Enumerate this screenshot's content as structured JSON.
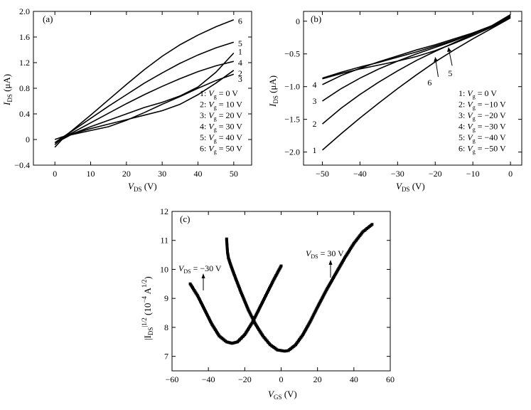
{
  "chart_data": [
    {
      "panel": "(a)",
      "type": "line",
      "xlabel_main": "V",
      "xlabel_sub": "DS",
      "xlabel_unit": " (V)",
      "ylabel_main": "I",
      "ylabel_sub": "DS",
      "ylabel_unit": " (μA)",
      "xlim": [
        -6,
        55
      ],
      "ylim": [
        -0.4,
        2.0
      ],
      "xticks": [
        0,
        10,
        20,
        30,
        40,
        50
      ],
      "yticks": [
        -0.4,
        0,
        0.4,
        0.8,
        1.2,
        1.6,
        2.0
      ],
      "ytick_labels": [
        "−0.4",
        "0",
        "0.4",
        "0.8",
        "1.2",
        "1.6",
        "2.0"
      ],
      "legend": [
        {
          "num": "1",
          "v": "V",
          "sub": "g",
          "val": " = 0 V"
        },
        {
          "num": "2",
          "v": "V",
          "sub": "g",
          "val": " = 10 V"
        },
        {
          "num": "3",
          "v": "V",
          "sub": "g",
          "val": " = 20 V"
        },
        {
          "num": "4",
          "v": "V",
          "sub": "g",
          "val": " = 30 V"
        },
        {
          "num": "5",
          "v": "V",
          "sub": "g",
          "val": " = 40 V"
        },
        {
          "num": "6",
          "v": "V",
          "sub": "g",
          "val": " = 50 V"
        }
      ],
      "series": [
        {
          "label": "1",
          "x": [
            0,
            2,
            5,
            10,
            15,
            20,
            25,
            30,
            35,
            40,
            45,
            50
          ],
          "y": [
            -0.12,
            0.0,
            0.09,
            0.2,
            0.3,
            0.4,
            0.5,
            0.58,
            0.68,
            0.82,
            1.05,
            1.35
          ]
        },
        {
          "label": "2",
          "x": [
            0,
            2,
            5,
            10,
            15,
            20,
            25,
            30,
            35,
            40,
            45,
            50
          ],
          "y": [
            -0.08,
            0.02,
            0.09,
            0.17,
            0.24,
            0.31,
            0.38,
            0.45,
            0.55,
            0.7,
            0.88,
            1.08
          ]
        },
        {
          "label": "3",
          "x": [
            0,
            2,
            5,
            10,
            15,
            20,
            25,
            30,
            35,
            40,
            45,
            50
          ],
          "y": [
            0.0,
            0.04,
            0.08,
            0.14,
            0.2,
            0.3,
            0.42,
            0.55,
            0.67,
            0.8,
            0.92,
            1.02
          ]
        },
        {
          "label": "4",
          "x": [
            0,
            2,
            5,
            10,
            15,
            20,
            25,
            30,
            35,
            40,
            45,
            50
          ],
          "y": [
            -0.05,
            0.03,
            0.11,
            0.26,
            0.41,
            0.56,
            0.7,
            0.83,
            0.95,
            1.06,
            1.15,
            1.22
          ]
        },
        {
          "label": "5",
          "x": [
            0,
            2,
            5,
            10,
            15,
            20,
            25,
            30,
            35,
            40,
            45,
            50
          ],
          "y": [
            -0.05,
            0.03,
            0.14,
            0.33,
            0.52,
            0.7,
            0.88,
            1.04,
            1.19,
            1.32,
            1.43,
            1.52
          ]
        },
        {
          "label": "6",
          "x": [
            0,
            2,
            5,
            10,
            15,
            20,
            25,
            30,
            35,
            40,
            45,
            50
          ],
          "y": [
            -0.08,
            0.02,
            0.15,
            0.38,
            0.62,
            0.86,
            1.09,
            1.3,
            1.48,
            1.63,
            1.76,
            1.87
          ]
        }
      ]
    },
    {
      "panel": "(b)",
      "type": "line",
      "xlabel_main": "V",
      "xlabel_sub": "DS",
      "xlabel_unit": " (V)",
      "ylabel_main": "I",
      "ylabel_sub": "DS",
      "ylabel_unit": " (μA)",
      "xlim": [
        -55,
        3
      ],
      "ylim": [
        -2.2,
        0.15
      ],
      "xticks": [
        -50,
        -40,
        -30,
        -20,
        -10,
        0
      ],
      "xtick_labels": [
        "−50",
        "−40",
        "−30",
        "−20",
        "−10",
        "0"
      ],
      "yticks": [
        -2.0,
        -1.5,
        -1.0,
        -0.5,
        0
      ],
      "ytick_labels": [
        "−2.0",
        "−1.5",
        "−1.0",
        "−0.5",
        "0"
      ],
      "legend": [
        {
          "num": "1",
          "v": "V",
          "sub": "g",
          "val": " = 0 V"
        },
        {
          "num": "2",
          "v": "V",
          "sub": "g",
          "val": " = −10 V"
        },
        {
          "num": "3",
          "v": "V",
          "sub": "g",
          "val": " = −20 V"
        },
        {
          "num": "4",
          "v": "V",
          "sub": "g",
          "val": " = −30 V"
        },
        {
          "num": "5",
          "v": "V",
          "sub": "g",
          "val": " = −40 V"
        },
        {
          "num": "6",
          "v": "V",
          "sub": "g",
          "val": " = −50 V"
        }
      ],
      "series": [
        {
          "label": "1",
          "x": [
            -50,
            -45,
            -40,
            -35,
            -30,
            -25,
            -20,
            -15,
            -10,
            -5,
            0
          ],
          "y": [
            -1.97,
            -1.72,
            -1.48,
            -1.25,
            -1.03,
            -0.82,
            -0.62,
            -0.44,
            -0.27,
            -0.11,
            0.05
          ]
        },
        {
          "label": "2",
          "x": [
            -50,
            -45,
            -40,
            -35,
            -30,
            -25,
            -20,
            -15,
            -10,
            -5,
            0
          ],
          "y": [
            -1.57,
            -1.33,
            -1.12,
            -0.93,
            -0.76,
            -0.6,
            -0.46,
            -0.33,
            -0.2,
            -0.07,
            0.07
          ]
        },
        {
          "label": "3",
          "x": [
            -50,
            -45,
            -40,
            -35,
            -30,
            -25,
            -20,
            -15,
            -10,
            -5,
            0
          ],
          "y": [
            -1.22,
            -1.03,
            -0.87,
            -0.73,
            -0.61,
            -0.5,
            -0.4,
            -0.3,
            -0.19,
            -0.07,
            0.08
          ]
        },
        {
          "label": "4",
          "x": [
            -50,
            -45,
            -40,
            -35,
            -30,
            -25,
            -20,
            -15,
            -10,
            -5,
            0
          ],
          "y": [
            -0.97,
            -0.83,
            -0.72,
            -0.62,
            -0.53,
            -0.44,
            -0.36,
            -0.27,
            -0.18,
            -0.07,
            0.1
          ]
        },
        {
          "label": "5",
          "x": [
            -50,
            -45,
            -40,
            -35,
            -30,
            -25,
            -20,
            -15,
            -10,
            -5,
            0
          ],
          "y": [
            -0.87,
            -0.78,
            -0.7,
            -0.63,
            -0.55,
            -0.47,
            -0.38,
            -0.29,
            -0.19,
            -0.08,
            0.08
          ]
        },
        {
          "label": "6",
          "x": [
            -50,
            -45,
            -40,
            -35,
            -30,
            -25,
            -20,
            -15,
            -10,
            -5,
            0
          ],
          "y": [
            -0.88,
            -0.8,
            -0.73,
            -0.67,
            -0.61,
            -0.54,
            -0.45,
            -0.34,
            -0.22,
            -0.09,
            0.06
          ]
        }
      ],
      "arrow_labels": [
        "6",
        "5"
      ]
    },
    {
      "panel": "(c)",
      "type": "scatter",
      "xlabel_main": "V",
      "xlabel_sub": "GS",
      "xlabel_unit": " (V)",
      "ylabel_text": "|I",
      "ylabel_sub": "DS",
      "ylabel_sup": "|1/2",
      "ylabel_unit": " (10",
      "ylabel_exp": "−4",
      "ylabel_unit2": " A",
      "ylabel_exp2": "1/2",
      "ylabel_close": ")",
      "xlim": [
        -60,
        60
      ],
      "ylim": [
        6.5,
        12
      ],
      "xticks": [
        -60,
        -40,
        -20,
        0,
        20,
        40,
        60
      ],
      "xtick_labels": [
        "−60",
        "−40",
        "−20",
        "0",
        "20",
        "40",
        "60"
      ],
      "yticks": [
        7,
        8,
        9,
        10,
        11,
        12
      ],
      "series": [
        {
          "name": "VDS = −30 V",
          "x": [
            -50,
            -46,
            -42,
            -38,
            -34,
            -30,
            -27,
            -24,
            -20,
            -16,
            -12,
            -8,
            -4,
            0
          ],
          "y": [
            9.5,
            9.1,
            8.6,
            8.1,
            7.7,
            7.5,
            7.45,
            7.5,
            7.75,
            8.15,
            8.65,
            9.15,
            9.65,
            10.12
          ]
        },
        {
          "name": "VDS = 30 V",
          "x": [
            -30,
            -29.5,
            -29,
            -28,
            -26,
            -22,
            -18,
            -14,
            -10,
            -6,
            -2,
            2,
            4,
            8,
            12,
            16,
            20,
            25,
            30,
            35,
            40,
            45,
            50
          ],
          "y": [
            11.05,
            10.6,
            10.4,
            10.2,
            9.85,
            9.2,
            8.6,
            8.1,
            7.7,
            7.4,
            7.22,
            7.18,
            7.2,
            7.4,
            7.75,
            8.2,
            8.7,
            9.3,
            9.85,
            10.4,
            10.9,
            11.3,
            11.55
          ]
        }
      ],
      "annotations": [
        {
          "main": "V",
          "sub": "DS",
          "val": " = −30 V"
        },
        {
          "main": "V",
          "sub": "DS",
          "val": " = 30 V"
        }
      ]
    }
  ]
}
